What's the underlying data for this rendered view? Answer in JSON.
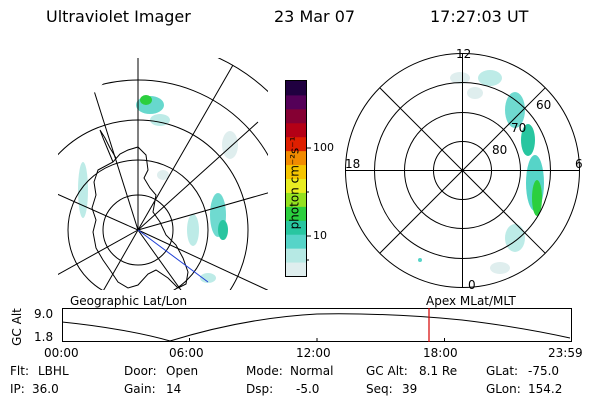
{
  "header": {
    "instrument": "Ultraviolet Imager",
    "date": "23 Mar 07",
    "time": "17:27:03 UT"
  },
  "left_panel": {
    "label": "Geographic Lat/Lon",
    "view": "geographic map projection with auroral emission and coastlines"
  },
  "right_panel": {
    "label": "Apex MLat/MLT",
    "mlt_ticks": [
      "12",
      "18",
      "6",
      "0"
    ],
    "mlat_rings": [
      "60",
      "70",
      "80"
    ]
  },
  "colorbar": {
    "unit_label": "photon cm⁻²s⁻¹",
    "ticks": [
      "100",
      "10"
    ],
    "scale": "log",
    "colors": [
      "#dfeeee",
      "#b6e9e4",
      "#56d4c8",
      "#28c6a0",
      "#2bcf3e",
      "#94e11f",
      "#e8ed22",
      "#f5c500",
      "#f28b00",
      "#de1f00",
      "#b40016",
      "#850033",
      "#540058",
      "#200040"
    ]
  },
  "altitude_plot": {
    "ylabel": "GC Alt",
    "yticks": [
      "9.0",
      "1.8"
    ],
    "xticks": [
      "00:00",
      "06:00",
      "12:00",
      "18:00",
      "23:59"
    ],
    "current_time_marker": "17:27",
    "marker_color": "#d40000"
  },
  "status": {
    "filter_label": "Flt:",
    "filter_value": "LBHL",
    "door_label": "Door:",
    "door_value": "Open",
    "mode_label": "Mode:",
    "mode_value": "Normal",
    "gcalt_label": "GC Alt:",
    "gcalt_value": "8.1 Re",
    "glat_label": "GLat:",
    "glat_value": "-75.0",
    "ip_label": "IP:",
    "ip_value": "36.0",
    "gain_label": "Gain:",
    "gain_value": "14",
    "dsp_label": "Dsp:",
    "dsp_value": "-5.0",
    "seq_label": "Seq:",
    "seq_value": "39",
    "glon_label": "GLon:",
    "glon_value": "154.2"
  }
}
